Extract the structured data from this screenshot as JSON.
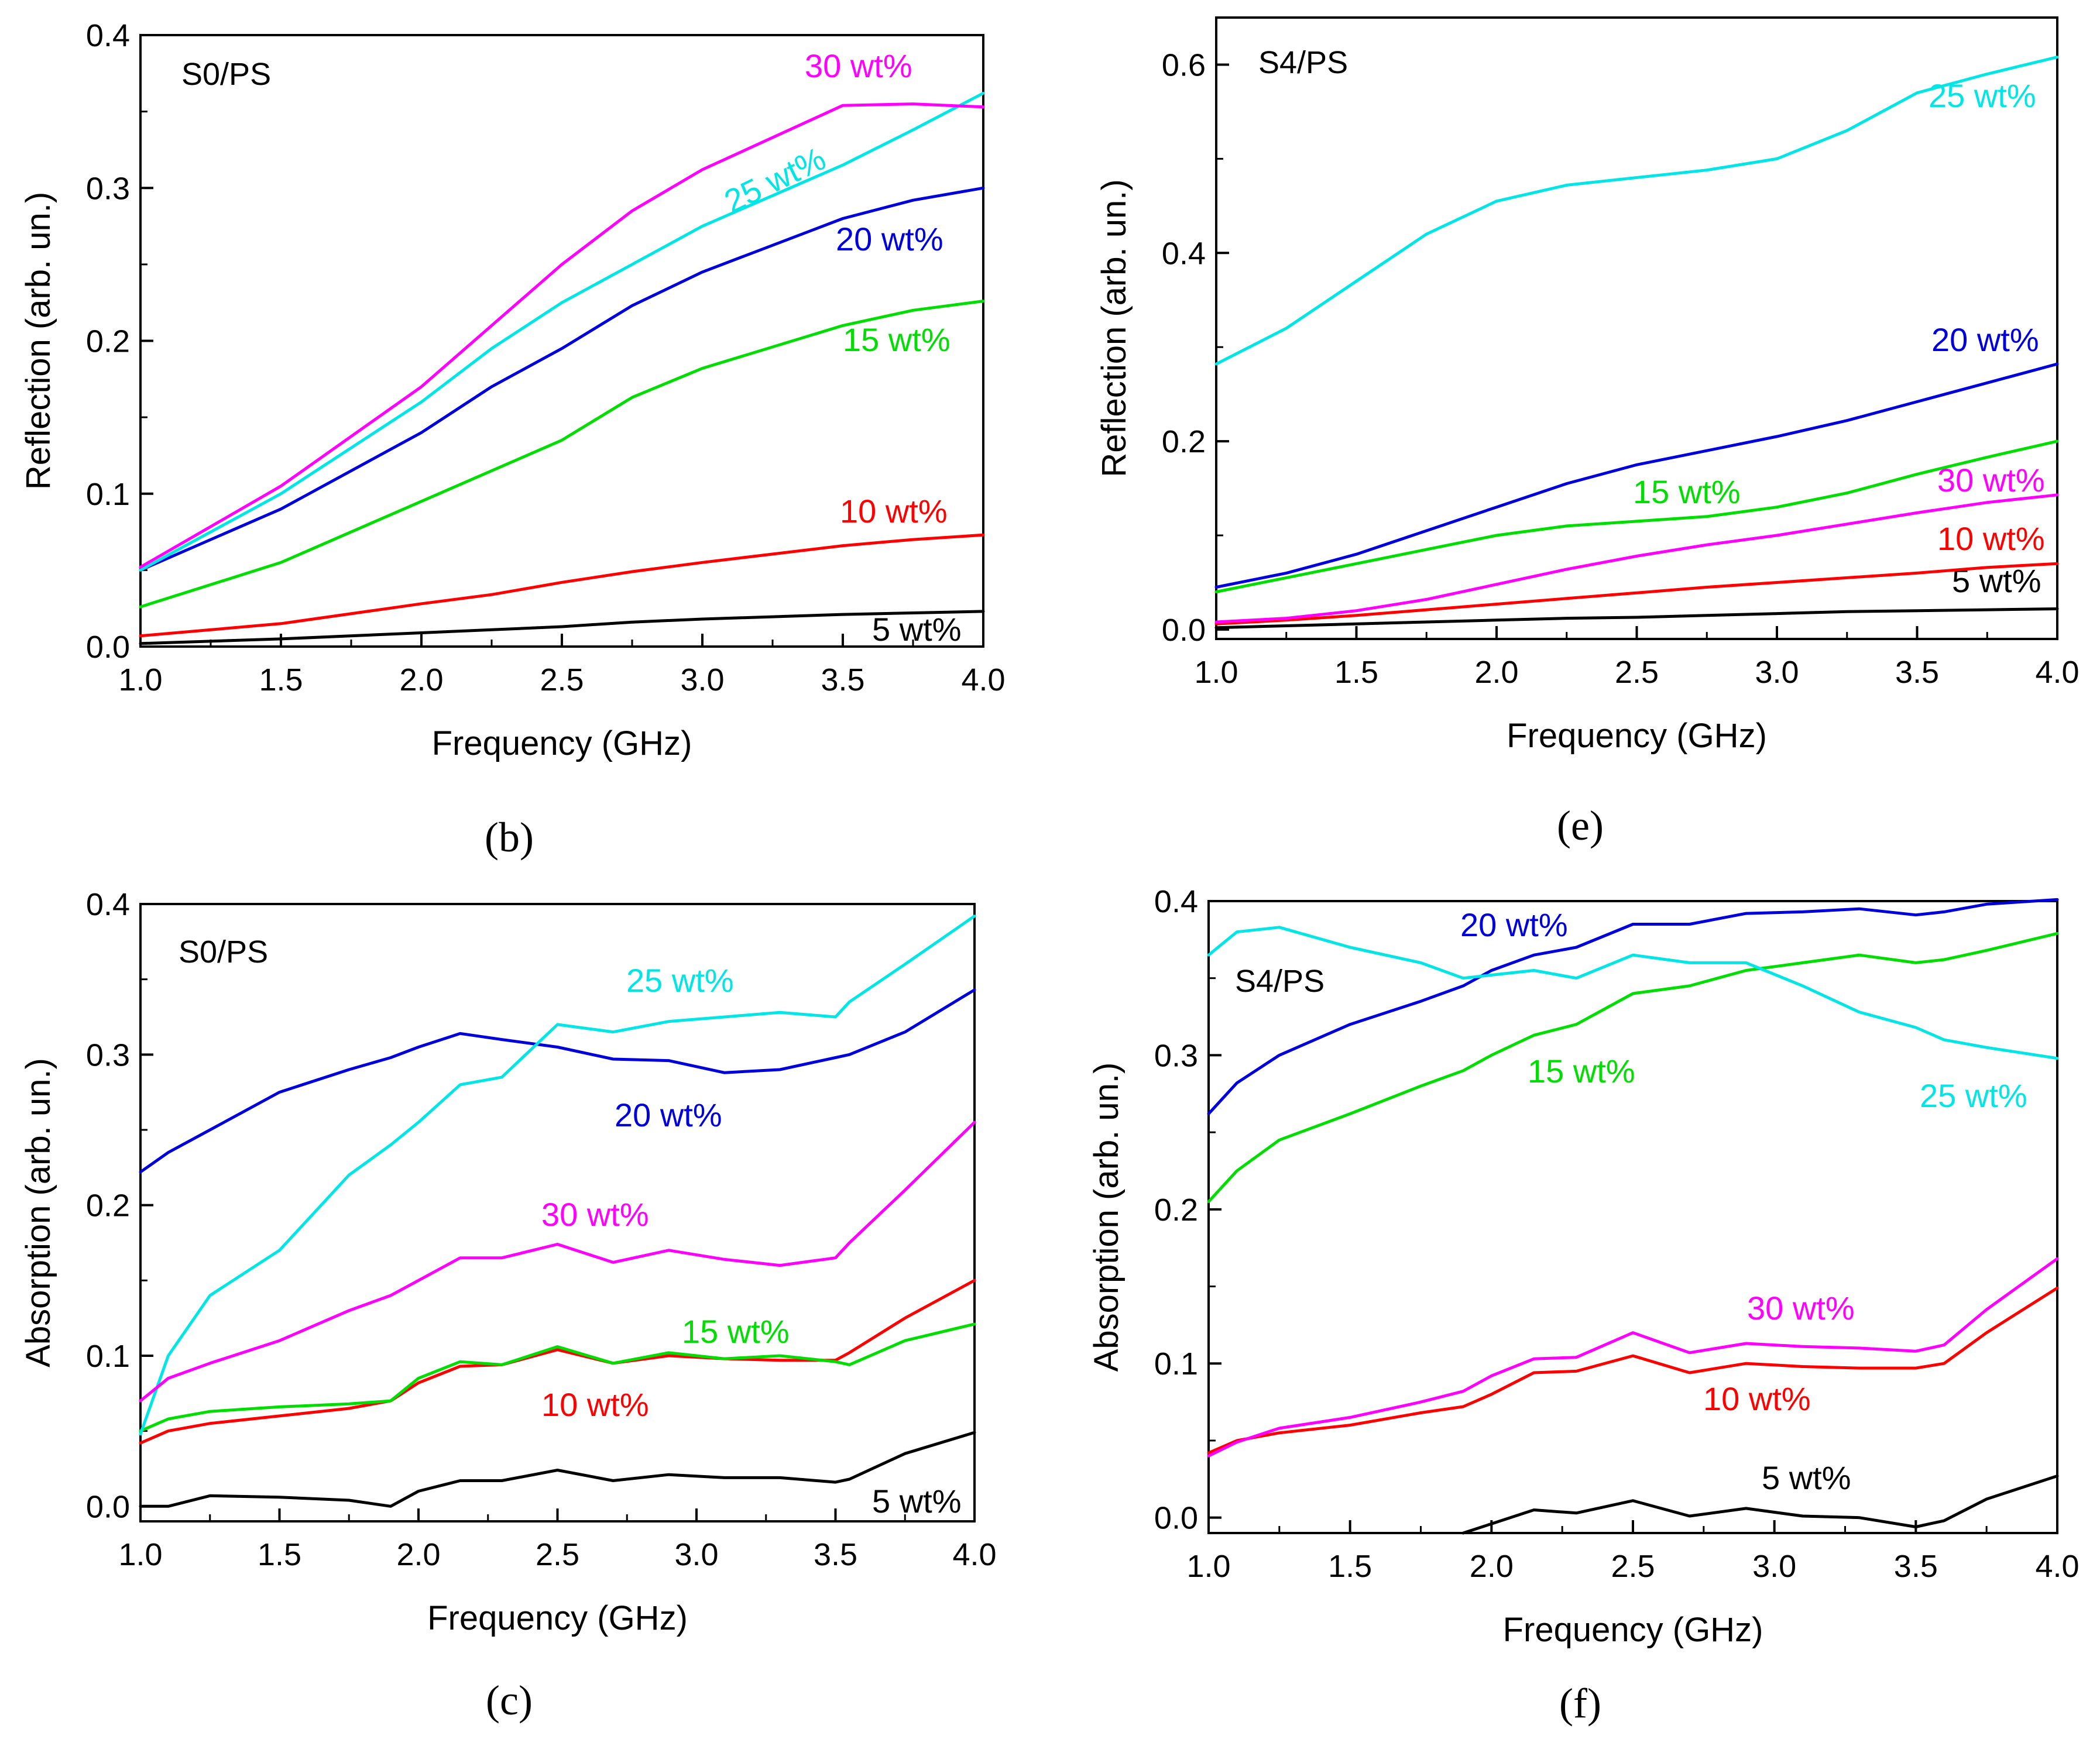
{
  "colors": {
    "5 wt%": "#000000",
    "10 wt%": "#ff0000",
    "15 wt%": "#00dd00",
    "20 wt%": "#0000dd",
    "25 wt%": "#00e5e5",
    "30 wt%": "#ff00ff"
  },
  "chart_data": [
    {
      "id": "b",
      "type": "line",
      "panel_label": "(b)",
      "sample": "S0/PS",
      "xlabel": "Frequency (GHz)",
      "ylabel": "Reflection (arb. un.)",
      "xlim": [
        1.0,
        4.0
      ],
      "ylim": [
        0.0,
        0.4
      ],
      "xticks": [
        "1.0",
        "1.5",
        "2.0",
        "2.5",
        "3.0",
        "3.5",
        "4.0"
      ],
      "yticks": [
        "0.0",
        "0.1",
        "0.2",
        "0.3",
        "0.4"
      ],
      "x": [
        1.0,
        1.5,
        2.0,
        2.25,
        2.5,
        2.75,
        3.0,
        3.5,
        3.75,
        4.0
      ],
      "series": [
        {
          "name": "5 wt%",
          "label": "5 wt%",
          "values": [
            0.002,
            0.005,
            0.009,
            0.011,
            0.013,
            0.016,
            0.018,
            0.021,
            0.022,
            0.023
          ]
        },
        {
          "name": "10 wt%",
          "label": "10 wt%",
          "values": [
            0.007,
            0.015,
            0.028,
            0.034,
            0.042,
            0.049,
            0.055,
            0.066,
            0.07,
            0.073
          ]
        },
        {
          "name": "15 wt%",
          "label": "15 wt%",
          "values": [
            0.026,
            0.055,
            0.095,
            0.115,
            0.135,
            0.163,
            0.182,
            0.21,
            0.22,
            0.226
          ]
        },
        {
          "name": "20 wt%",
          "label": "20 wt%",
          "values": [
            0.05,
            0.09,
            0.14,
            0.17,
            0.195,
            0.223,
            0.245,
            0.28,
            0.292,
            0.3
          ]
        },
        {
          "name": "25 wt%",
          "label": "25 wt%",
          "values": [
            0.05,
            0.1,
            0.16,
            0.195,
            0.225,
            0.25,
            0.275,
            0.315,
            0.338,
            0.362
          ]
        },
        {
          "name": "30 wt%",
          "label": "30 wt%",
          "values": [
            0.052,
            0.105,
            0.17,
            0.21,
            0.25,
            0.285,
            0.312,
            0.354,
            0.355,
            0.353
          ]
        }
      ]
    },
    {
      "id": "e",
      "type": "line",
      "panel_label": "(e)",
      "sample": "S4/PS",
      "xlabel": "Frequency (GHz)",
      "ylabel": "Reflection (arb. un.)",
      "xlim": [
        1.0,
        4.0
      ],
      "ylim": [
        -0.01,
        0.65
      ],
      "xticks": [
        "1.0",
        "1.5",
        "2.0",
        "2.5",
        "3.0",
        "3.5",
        "4.0"
      ],
      "yticks": [
        "0.0",
        "0.2",
        "0.4",
        "0.6"
      ],
      "x": [
        1.0,
        1.25,
        1.5,
        1.75,
        2.0,
        2.25,
        2.5,
        2.75,
        3.0,
        3.25,
        3.5,
        3.75,
        4.0
      ],
      "series": [
        {
          "name": "5 wt%",
          "label": "5 wt%",
          "values": [
            0.002,
            0.004,
            0.006,
            0.008,
            0.01,
            0.012,
            0.013,
            0.015,
            0.017,
            0.019,
            0.02,
            0.021,
            0.022
          ]
        },
        {
          "name": "10 wt%",
          "label": "10 wt%",
          "values": [
            0.006,
            0.01,
            0.015,
            0.021,
            0.027,
            0.033,
            0.039,
            0.045,
            0.05,
            0.055,
            0.06,
            0.066,
            0.07
          ]
        },
        {
          "name": "15 wt%",
          "label": "15 wt%",
          "values": [
            0.04,
            0.055,
            0.07,
            0.085,
            0.1,
            0.11,
            0.115,
            0.12,
            0.13,
            0.145,
            0.165,
            0.183,
            0.2
          ]
        },
        {
          "name": "20 wt%",
          "label": "20 wt%",
          "values": [
            0.045,
            0.06,
            0.08,
            0.105,
            0.13,
            0.155,
            0.175,
            0.19,
            0.205,
            0.222,
            0.242,
            0.262,
            0.282
          ]
        },
        {
          "name": "25 wt%",
          "label": "25 wt%",
          "values": [
            0.282,
            0.32,
            0.37,
            0.42,
            0.455,
            0.472,
            0.48,
            0.488,
            0.5,
            0.53,
            0.57,
            0.59,
            0.608
          ]
        },
        {
          "name": "30 wt%",
          "label": "30 wt%",
          "values": [
            0.008,
            0.012,
            0.02,
            0.032,
            0.048,
            0.064,
            0.078,
            0.09,
            0.1,
            0.112,
            0.124,
            0.135,
            0.143
          ]
        }
      ]
    },
    {
      "id": "c",
      "type": "line",
      "panel_label": "(c)",
      "sample": "S0/PS",
      "xlabel": "Frequency (GHz)",
      "ylabel": "Absorption (arb. un.)",
      "xlim": [
        1.0,
        4.0
      ],
      "ylim": [
        -0.01,
        0.4
      ],
      "xticks": [
        "1.0",
        "1.5",
        "2.0",
        "2.5",
        "3.0",
        "3.5",
        "4.0"
      ],
      "yticks": [
        "0.0",
        "0.1",
        "0.2",
        "0.3",
        "0.4"
      ],
      "x": [
        1.0,
        1.1,
        1.25,
        1.5,
        1.75,
        1.9,
        2.0,
        2.15,
        2.3,
        2.5,
        2.7,
        2.9,
        3.1,
        3.3,
        3.5,
        3.55,
        3.75,
        4.0
      ],
      "series": [
        {
          "name": "5 wt%",
          "label": "5 wt%",
          "values": [
            0.0,
            0.0,
            0.007,
            0.006,
            0.004,
            0.0,
            0.01,
            0.017,
            0.017,
            0.024,
            0.017,
            0.021,
            0.019,
            0.019,
            0.016,
            0.018,
            0.035,
            0.049
          ]
        },
        {
          "name": "10 wt%",
          "label": "10 wt%",
          "values": [
            0.042,
            0.05,
            0.055,
            0.06,
            0.065,
            0.07,
            0.082,
            0.093,
            0.094,
            0.104,
            0.095,
            0.1,
            0.098,
            0.097,
            0.097,
            0.102,
            0.125,
            0.15
          ]
        },
        {
          "name": "15 wt%",
          "label": "15 wt%",
          "values": [
            0.05,
            0.058,
            0.063,
            0.066,
            0.068,
            0.07,
            0.085,
            0.096,
            0.094,
            0.106,
            0.095,
            0.102,
            0.098,
            0.1,
            0.096,
            0.094,
            0.11,
            0.121
          ]
        },
        {
          "name": "20 wt%",
          "label": "20 wt%",
          "values": [
            0.222,
            0.235,
            0.25,
            0.275,
            0.29,
            0.298,
            0.305,
            0.314,
            0.31,
            0.305,
            0.297,
            0.296,
            0.288,
            0.29,
            0.298,
            0.3,
            0.315,
            0.343
          ]
        },
        {
          "name": "25 wt%",
          "label": "25 wt%",
          "values": [
            0.048,
            0.1,
            0.14,
            0.17,
            0.22,
            0.24,
            0.255,
            0.28,
            0.285,
            0.32,
            0.315,
            0.322,
            0.325,
            0.328,
            0.325,
            0.335,
            0.36,
            0.392
          ]
        },
        {
          "name": "30 wt%",
          "label": "30 wt%",
          "values": [
            0.07,
            0.085,
            0.095,
            0.11,
            0.13,
            0.14,
            0.15,
            0.165,
            0.165,
            0.174,
            0.162,
            0.17,
            0.164,
            0.16,
            0.165,
            0.175,
            0.21,
            0.255
          ]
        }
      ]
    },
    {
      "id": "f",
      "type": "line",
      "panel_label": "(f)",
      "sample": "S4/PS",
      "xlabel": "Frequency (GHz)",
      "ylabel": "Absorption (arb. un.)",
      "xlim": [
        1.0,
        4.0
      ],
      "ylim": [
        -0.01,
        0.4
      ],
      "xticks": [
        "1.0",
        "1.5",
        "2.0",
        "2.5",
        "3.0",
        "3.5",
        "4.0"
      ],
      "yticks": [
        "0.0",
        "0.1",
        "0.2",
        "0.3",
        "0.4"
      ],
      "x": [
        1.0,
        1.1,
        1.25,
        1.5,
        1.75,
        1.9,
        2.0,
        2.15,
        2.3,
        2.5,
        2.7,
        2.9,
        3.1,
        3.3,
        3.5,
        3.6,
        3.75,
        4.0
      ],
      "series": [
        {
          "name": "5 wt%",
          "label": "5 wt%",
          "values": [
            null,
            null,
            null,
            null,
            null,
            -0.01,
            -0.004,
            0.005,
            0.003,
            0.011,
            0.001,
            0.006,
            0.001,
            0.0,
            -0.006,
            -0.002,
            0.012,
            0.027
          ]
        },
        {
          "name": "10 wt%",
          "label": "10 wt%",
          "values": [
            0.042,
            0.05,
            0.055,
            0.06,
            0.068,
            0.072,
            0.08,
            0.094,
            0.095,
            0.105,
            0.094,
            0.1,
            0.098,
            0.097,
            0.097,
            0.1,
            0.12,
            0.149
          ]
        },
        {
          "name": "15 wt%",
          "label": "15 wt%",
          "values": [
            0.205,
            0.225,
            0.245,
            0.262,
            0.28,
            0.29,
            0.3,
            0.313,
            0.32,
            0.34,
            0.345,
            0.355,
            0.36,
            0.365,
            0.36,
            0.362,
            0.368,
            0.379
          ]
        },
        {
          "name": "20 wt%",
          "label": "20 wt%",
          "values": [
            0.262,
            0.282,
            0.3,
            0.32,
            0.335,
            0.345,
            0.355,
            0.365,
            0.37,
            0.385,
            0.385,
            0.392,
            0.393,
            0.395,
            0.391,
            0.393,
            0.398,
            0.401
          ]
        },
        {
          "name": "25 wt%",
          "label": "25 wt%",
          "values": [
            0.365,
            0.38,
            0.383,
            0.37,
            0.36,
            0.35,
            0.352,
            0.355,
            0.35,
            0.365,
            0.36,
            0.36,
            0.345,
            0.328,
            0.318,
            0.31,
            0.305,
            0.298
          ]
        },
        {
          "name": "30 wt%",
          "label": "30 wt%",
          "values": [
            0.04,
            0.049,
            0.058,
            0.065,
            0.075,
            0.082,
            0.092,
            0.103,
            0.104,
            0.12,
            0.107,
            0.113,
            0.111,
            0.11,
            0.108,
            0.112,
            0.135,
            0.168
          ]
        }
      ]
    }
  ]
}
